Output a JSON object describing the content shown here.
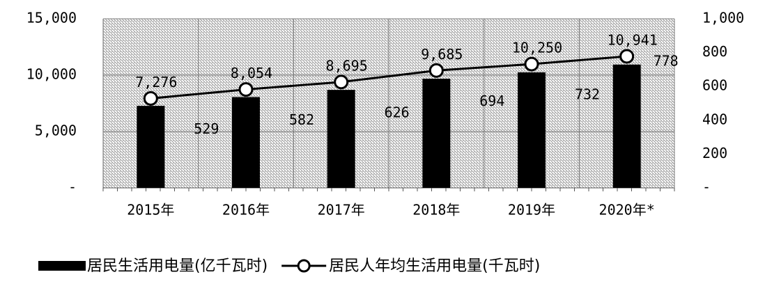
{
  "chart_data": {
    "type": "bar-line",
    "categories": [
      "2015年",
      "2016年",
      "2017年",
      "2018年",
      "2019年",
      "2020年*"
    ],
    "series": [
      {
        "name": "居民生活用电量(亿千瓦时)",
        "type": "bar",
        "color": "#000000",
        "values": [
          7276,
          8054,
          8695,
          9685,
          10250,
          10941
        ],
        "value_labels": [
          "7,276",
          "8,054",
          "8,695",
          "9,685",
          "10,250",
          "10,941"
        ]
      },
      {
        "name": "居民人年均生活用电量(千瓦时)",
        "type": "line",
        "color": "#000000",
        "axis": "y2",
        "values": [
          529,
          582,
          626,
          694,
          732,
          778
        ]
      }
    ],
    "ylim": [
      0,
      15000
    ],
    "yticks": [
      {
        "value": 0,
        "label": "-"
      },
      {
        "value": 5000,
        "label": "5,000"
      },
      {
        "value": 10000,
        "label": "10,000"
      },
      {
        "value": 15000,
        "label": "15,000"
      }
    ],
    "y2lim": [
      0,
      1000
    ],
    "y2ticks": [
      {
        "value": 0,
        "label": "-"
      },
      200,
      400,
      600,
      800,
      {
        "value": 1000,
        "label": "1,000"
      }
    ],
    "grid": true,
    "legend": "bottom"
  }
}
